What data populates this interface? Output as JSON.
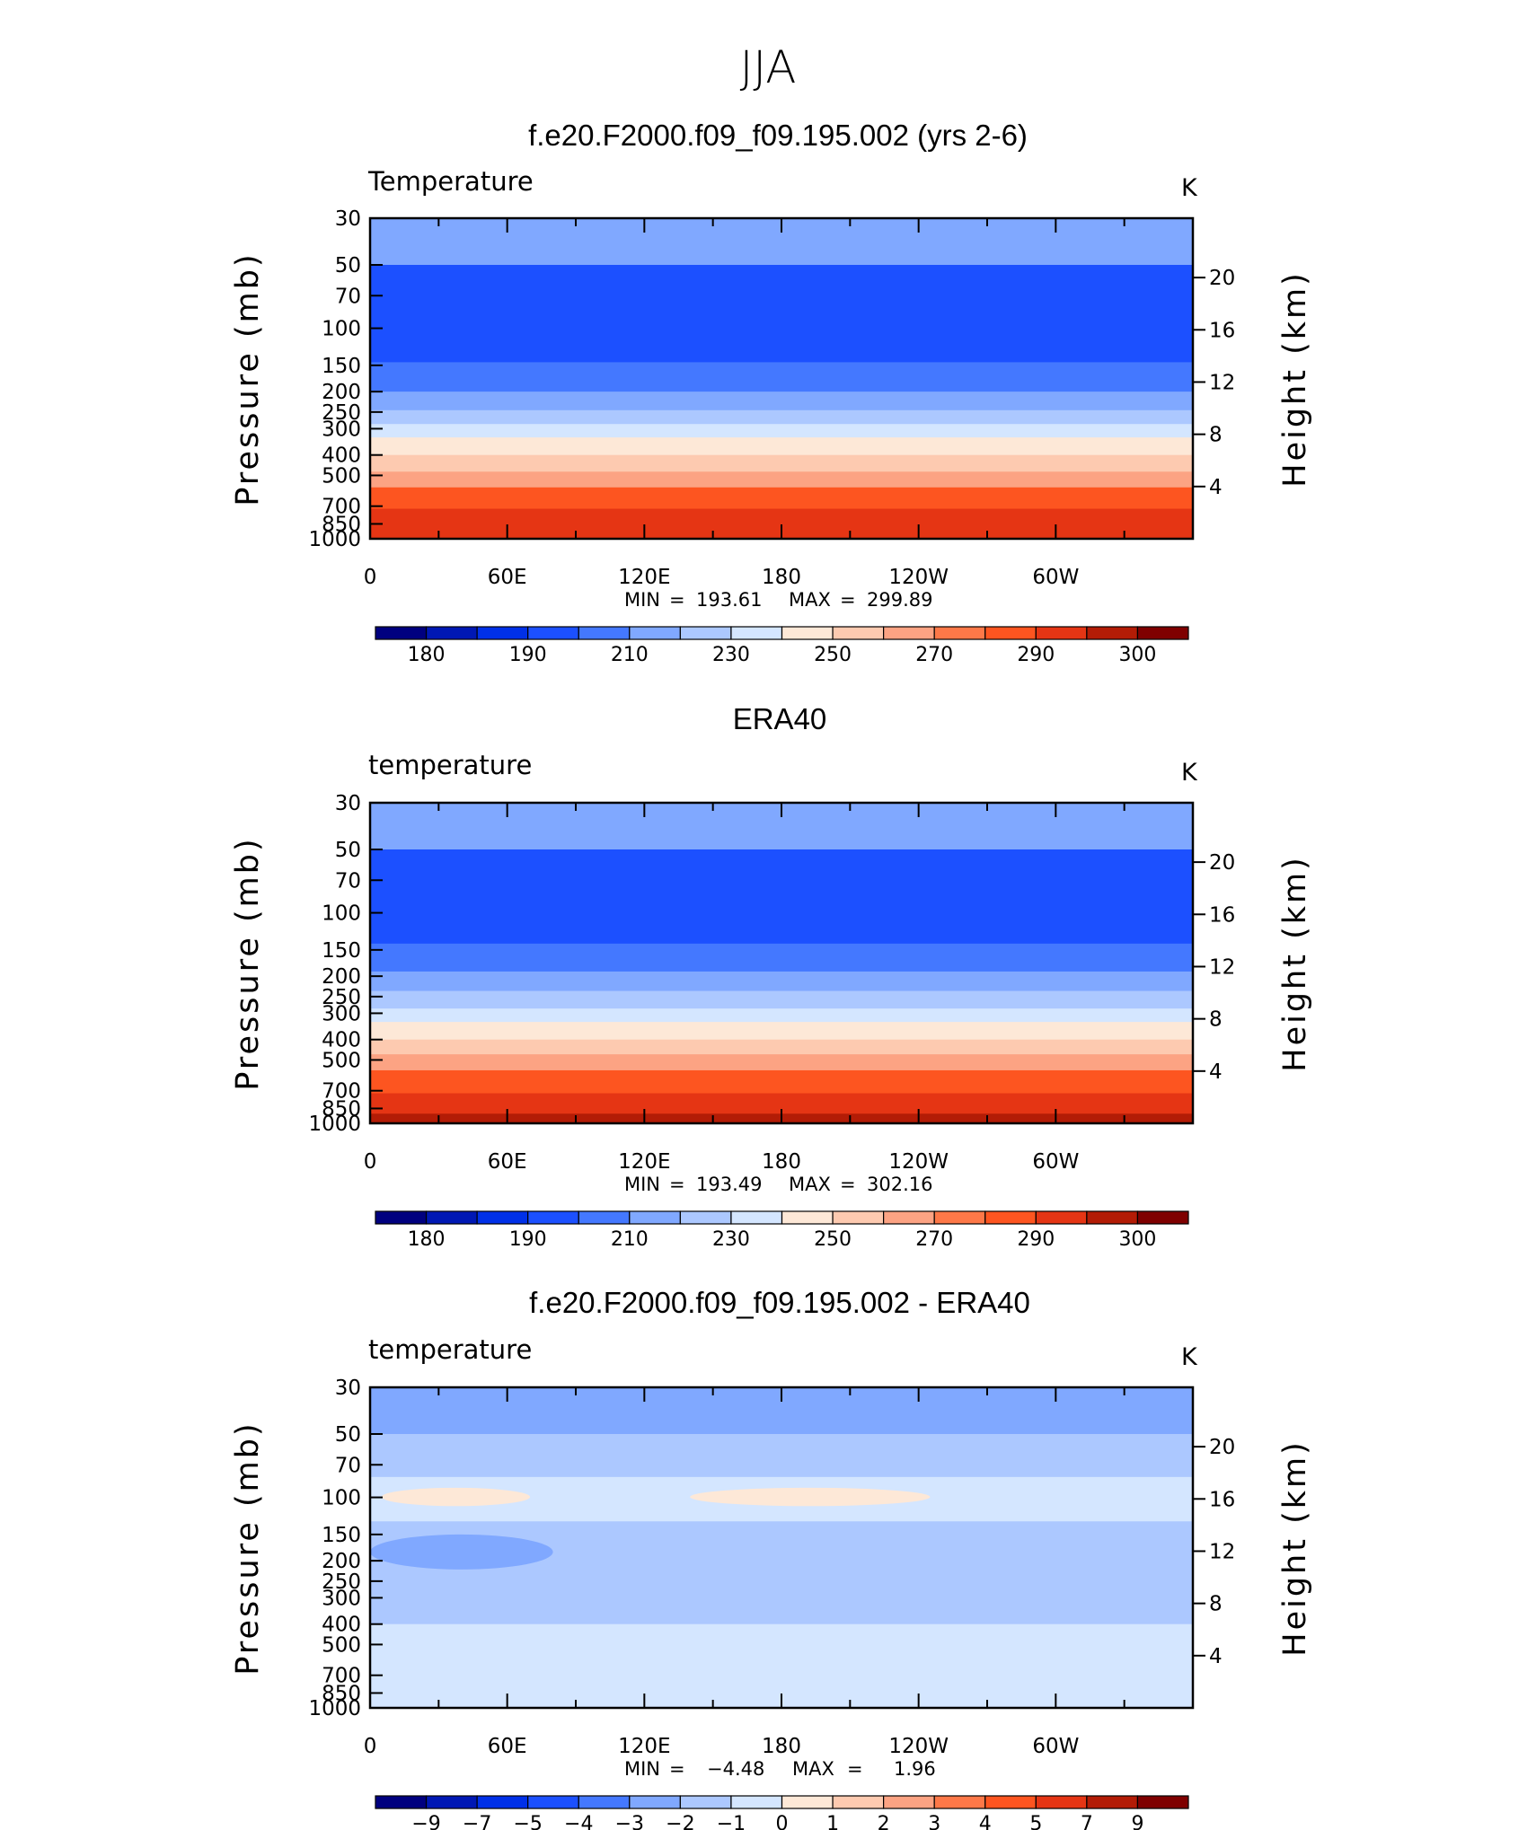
{
  "figure": {
    "season": "JJA",
    "panels": [
      {
        "title": "f.e20.F2000.f09_f09.195.002 (yrs 2-6)",
        "variable": "Temperature",
        "units": "K",
        "stats": {
          "min_label": "MIN",
          "min": "193.61",
          "max_label": "MAX",
          "max": "299.89"
        }
      },
      {
        "title": "ERA40",
        "variable": "temperature",
        "units": "K",
        "stats": {
          "min_label": "MIN",
          "min": "193.49",
          "max_label": "MAX",
          "max": "302.16"
        }
      },
      {
        "title": "f.e20.F2000.f09_f09.195.002 - ERA40",
        "variable": "temperature",
        "units": "K",
        "stats": {
          "min_label": "MIN",
          "min": "−4.48",
          "max_label": "MAX",
          "max": "1.96"
        }
      }
    ]
  },
  "chart_data": [
    {
      "type": "heatmap",
      "title": "f.e20.F2000.f09_f09.195.002 (yrs 2-6)",
      "ylabel": "Pressure (mb)",
      "y2label": "Height (km)",
      "xticks": [
        "0",
        "60E",
        "120E",
        "180",
        "120W",
        "60W"
      ],
      "xrange_deg": [
        0,
        360
      ],
      "yticks": [
        "30",
        "50",
        "70",
        "100",
        "150",
        "200",
        "250",
        "300",
        "400",
        "500",
        "700",
        "850",
        "1000"
      ],
      "y2ticks": [
        "20",
        "16",
        "12",
        "8",
        "4"
      ],
      "yrange_mb": [
        30,
        1000
      ],
      "colorbar": {
        "levels": [
          "180",
          "190",
          "210",
          "230",
          "250",
          "270",
          "290",
          "300"
        ],
        "colors": [
          "#00007f",
          "#0018b4",
          "#0030e8",
          "#1c50ff",
          "#4478ff",
          "#80a8ff",
          "#acc8ff",
          "#d4e6ff",
          "#fde8d7",
          "#fdcab0",
          "#fca383",
          "#fd7848",
          "#fd5520",
          "#e53514",
          "#b31c06",
          "#7f0000"
        ]
      },
      "bands": [
        {
          "p_top": 30,
          "p_bottom": 50,
          "value": 215
        },
        {
          "p_top": 50,
          "p_bottom": 100,
          "value": 205
        },
        {
          "p_top": 100,
          "p_bottom": 145,
          "value": 198
        },
        {
          "p_top": 145,
          "p_bottom": 200,
          "value": 207
        },
        {
          "p_top": 200,
          "p_bottom": 245,
          "value": 215
        },
        {
          "p_top": 245,
          "p_bottom": 285,
          "value": 225
        },
        {
          "p_top": 285,
          "p_bottom": 330,
          "value": 235
        },
        {
          "p_top": 330,
          "p_bottom": 400,
          "value": 245
        },
        {
          "p_top": 400,
          "p_bottom": 480,
          "value": 255
        },
        {
          "p_top": 480,
          "p_bottom": 570,
          "value": 265
        },
        {
          "p_top": 570,
          "p_bottom": 720,
          "value": 275
        },
        {
          "p_top": 720,
          "p_bottom": 1000,
          "value": 285
        }
      ],
      "stats": {
        "min": 193.61,
        "max": 299.89
      }
    },
    {
      "type": "heatmap",
      "title": "ERA40",
      "ylabel": "Pressure (mb)",
      "y2label": "Height (km)",
      "xticks": [
        "0",
        "60E",
        "120E",
        "180",
        "120W",
        "60W"
      ],
      "xrange_deg": [
        0,
        360
      ],
      "yticks": [
        "30",
        "50",
        "70",
        "100",
        "150",
        "200",
        "250",
        "300",
        "400",
        "500",
        "700",
        "850",
        "1000"
      ],
      "y2ticks": [
        "20",
        "16",
        "12",
        "8",
        "4"
      ],
      "yrange_mb": [
        30,
        1000
      ],
      "colorbar": {
        "levels": [
          "180",
          "190",
          "210",
          "230",
          "250",
          "270",
          "290",
          "300"
        ],
        "colors": [
          "#00007f",
          "#0018b4",
          "#0030e8",
          "#1c50ff",
          "#4478ff",
          "#80a8ff",
          "#acc8ff",
          "#d4e6ff",
          "#fde8d7",
          "#fdcab0",
          "#fca383",
          "#fd7848",
          "#fd5520",
          "#e53514",
          "#b31c06",
          "#7f0000"
        ]
      },
      "bands": [
        {
          "p_top": 30,
          "p_bottom": 50,
          "value": 215
        },
        {
          "p_top": 50,
          "p_bottom": 90,
          "value": 205
        },
        {
          "p_top": 90,
          "p_bottom": 140,
          "value": 198
        },
        {
          "p_top": 140,
          "p_bottom": 190,
          "value": 207
        },
        {
          "p_top": 190,
          "p_bottom": 235,
          "value": 215
        },
        {
          "p_top": 235,
          "p_bottom": 285,
          "value": 225
        },
        {
          "p_top": 285,
          "p_bottom": 330,
          "value": 235
        },
        {
          "p_top": 330,
          "p_bottom": 400,
          "value": 245
        },
        {
          "p_top": 400,
          "p_bottom": 470,
          "value": 255
        },
        {
          "p_top": 470,
          "p_bottom": 560,
          "value": 265
        },
        {
          "p_top": 560,
          "p_bottom": 720,
          "value": 275
        },
        {
          "p_top": 720,
          "p_bottom": 900,
          "value": 285
        },
        {
          "p_top": 900,
          "p_bottom": 1000,
          "value": 295
        }
      ],
      "stats": {
        "min": 193.49,
        "max": 302.16
      }
    },
    {
      "type": "heatmap",
      "title": "f.e20.F2000.f09_f09.195.002 - ERA40",
      "ylabel": "Pressure (mb)",
      "y2label": "Height (km)",
      "xticks": [
        "0",
        "60E",
        "120E",
        "180",
        "120W",
        "60W"
      ],
      "xrange_deg": [
        0,
        360
      ],
      "yticks": [
        "30",
        "50",
        "70",
        "100",
        "150",
        "200",
        "250",
        "300",
        "400",
        "500",
        "700",
        "850",
        "1000"
      ],
      "y2ticks": [
        "20",
        "16",
        "12",
        "8",
        "4"
      ],
      "yrange_mb": [
        30,
        1000
      ],
      "colorbar": {
        "levels": [
          "−9",
          "−7",
          "−5",
          "−4",
          "−3",
          "−2",
          "−1",
          "0",
          "1",
          "2",
          "3",
          "4",
          "5",
          "7",
          "9"
        ],
        "colors": [
          "#00007f",
          "#0018b4",
          "#0030e8",
          "#1c50ff",
          "#4478ff",
          "#80a8ff",
          "#acc8ff",
          "#d4e6ff",
          "#fde8d7",
          "#fdcab0",
          "#fca383",
          "#fd7848",
          "#fd5520",
          "#e53514",
          "#b31c06",
          "#7f0000"
        ]
      },
      "bands": [
        {
          "p_top": 30,
          "p_bottom": 50,
          "value": -3.5
        },
        {
          "p_top": 50,
          "p_bottom": 80,
          "value": -2.5
        },
        {
          "p_top": 80,
          "p_bottom": 130,
          "value": -0.5
        },
        {
          "p_top": 130,
          "p_bottom": 180,
          "value": -1.5
        },
        {
          "p_top": 180,
          "p_bottom": 240,
          "value": -2.5
        },
        {
          "p_top": 240,
          "p_bottom": 400,
          "value": -1.5
        },
        {
          "p_top": 400,
          "p_bottom": 850,
          "value": -0.5
        },
        {
          "p_top": 850,
          "p_bottom": 1000,
          "value": -0.5
        }
      ],
      "features": [
        {
          "lon_start": 5,
          "lon_end": 70,
          "p_top": 90,
          "p_bottom": 110,
          "value": 0.5
        },
        {
          "lon_start": 140,
          "lon_end": 245,
          "p_top": 90,
          "p_bottom": 110,
          "value": 0.5
        },
        {
          "lon_start": 0,
          "lon_end": 80,
          "p_top": 150,
          "p_bottom": 220,
          "value": -3.5
        }
      ],
      "stats": {
        "min": -4.48,
        "max": 1.96
      }
    }
  ]
}
